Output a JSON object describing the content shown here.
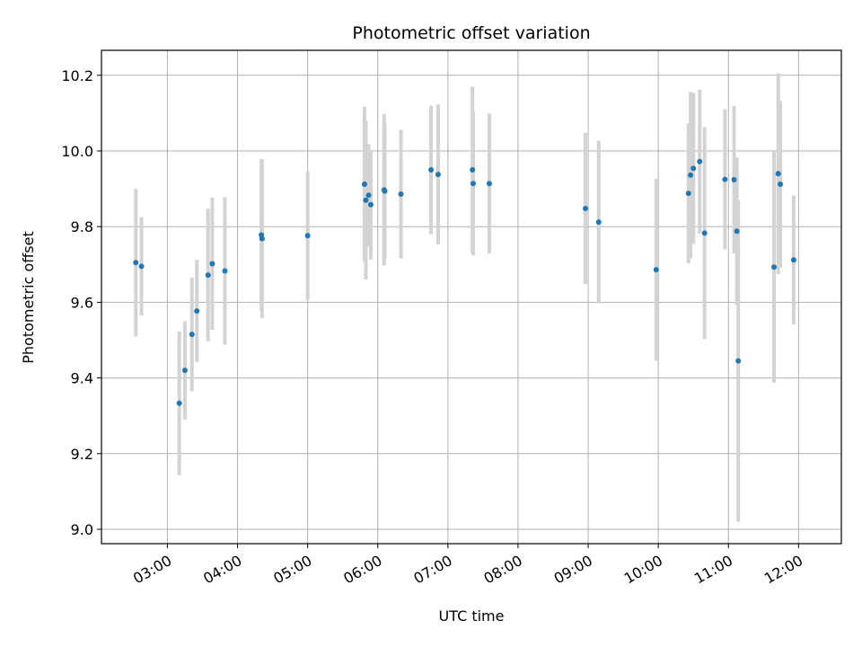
{
  "chart_data": {
    "type": "scatter",
    "title": "Photometric offset variation",
    "xlabel": "UTC time",
    "ylabel": "Photometric offset",
    "xlim": [
      2.06,
      12.61
    ],
    "ylim": [
      8.962,
      10.266
    ],
    "x_ticks": [
      3,
      4,
      5,
      6,
      7,
      8,
      9,
      10,
      11,
      12
    ],
    "x_tick_labels": [
      "03:00",
      "04:00",
      "05:00",
      "06:00",
      "07:00",
      "08:00",
      "09:00",
      "10:00",
      "11:00",
      "12:00"
    ],
    "y_ticks": [
      9.0,
      9.2,
      9.4,
      9.6,
      9.8,
      10.0,
      10.2
    ],
    "y_tick_labels": [
      "9.0",
      "9.2",
      "9.4",
      "9.6",
      "9.8",
      "10.0",
      "10.2"
    ],
    "grid": true,
    "marker_color": "#1f77b4",
    "errorbar_color": "#d3d3d3",
    "points": [
      {
        "x": 2.55,
        "y": 9.705,
        "err": 0.195
      },
      {
        "x": 2.63,
        "y": 9.695,
        "err": 0.13
      },
      {
        "x": 3.17,
        "y": 9.333,
        "err": 0.19
      },
      {
        "x": 3.25,
        "y": 9.42,
        "err": 0.13
      },
      {
        "x": 3.35,
        "y": 9.515,
        "err": 0.15
      },
      {
        "x": 3.42,
        "y": 9.577,
        "err": 0.135
      },
      {
        "x": 3.58,
        "y": 9.672,
        "err": 0.175
      },
      {
        "x": 3.64,
        "y": 9.702,
        "err": 0.175
      },
      {
        "x": 3.82,
        "y": 9.683,
        "err": 0.195
      },
      {
        "x": 4.34,
        "y": 9.778,
        "err": 0.2
      },
      {
        "x": 4.35,
        "y": 9.768,
        "err": 0.21
      },
      {
        "x": 5.0,
        "y": 9.776,
        "err": 0.17
      },
      {
        "x": 5.81,
        "y": 9.912,
        "err": 0.205
      },
      {
        "x": 5.83,
        "y": 9.87,
        "err": 0.21
      },
      {
        "x": 5.87,
        "y": 9.883,
        "err": 0.135
      },
      {
        "x": 5.9,
        "y": 9.858,
        "err": 0.145
      },
      {
        "x": 6.09,
        "y": 9.897,
        "err": 0.2
      },
      {
        "x": 6.1,
        "y": 9.894,
        "err": 0.18
      },
      {
        "x": 6.33,
        "y": 9.886,
        "err": 0.17
      },
      {
        "x": 6.76,
        "y": 9.95,
        "err": 0.17
      },
      {
        "x": 6.86,
        "y": 9.938,
        "err": 0.185
      },
      {
        "x": 7.35,
        "y": 9.95,
        "err": 0.22
      },
      {
        "x": 7.36,
        "y": 9.914,
        "err": 0.19
      },
      {
        "x": 7.59,
        "y": 9.914,
        "err": 0.185
      },
      {
        "x": 8.96,
        "y": 9.848,
        "err": 0.2
      },
      {
        "x": 9.15,
        "y": 9.812,
        "err": 0.215
      },
      {
        "x": 9.97,
        "y": 9.686,
        "err": 0.24
      },
      {
        "x": 10.43,
        "y": 9.888,
        "err": 0.185
      },
      {
        "x": 10.46,
        "y": 9.936,
        "err": 0.22
      },
      {
        "x": 10.5,
        "y": 9.954,
        "err": 0.2
      },
      {
        "x": 10.59,
        "y": 9.972,
        "err": 0.19
      },
      {
        "x": 10.66,
        "y": 9.783,
        "err": 0.28
      },
      {
        "x": 10.95,
        "y": 9.925,
        "err": 0.185
      },
      {
        "x": 11.08,
        "y": 9.924,
        "err": 0.195
      },
      {
        "x": 11.12,
        "y": 9.788,
        "err": 0.195
      },
      {
        "x": 11.14,
        "y": 9.445,
        "err": 0.425
      },
      {
        "x": 11.65,
        "y": 9.693,
        "err": 0.305
      },
      {
        "x": 11.71,
        "y": 9.94,
        "err": 0.265
      },
      {
        "x": 11.74,
        "y": 9.912,
        "err": 0.22
      },
      {
        "x": 11.93,
        "y": 9.712,
        "err": 0.17
      }
    ]
  }
}
